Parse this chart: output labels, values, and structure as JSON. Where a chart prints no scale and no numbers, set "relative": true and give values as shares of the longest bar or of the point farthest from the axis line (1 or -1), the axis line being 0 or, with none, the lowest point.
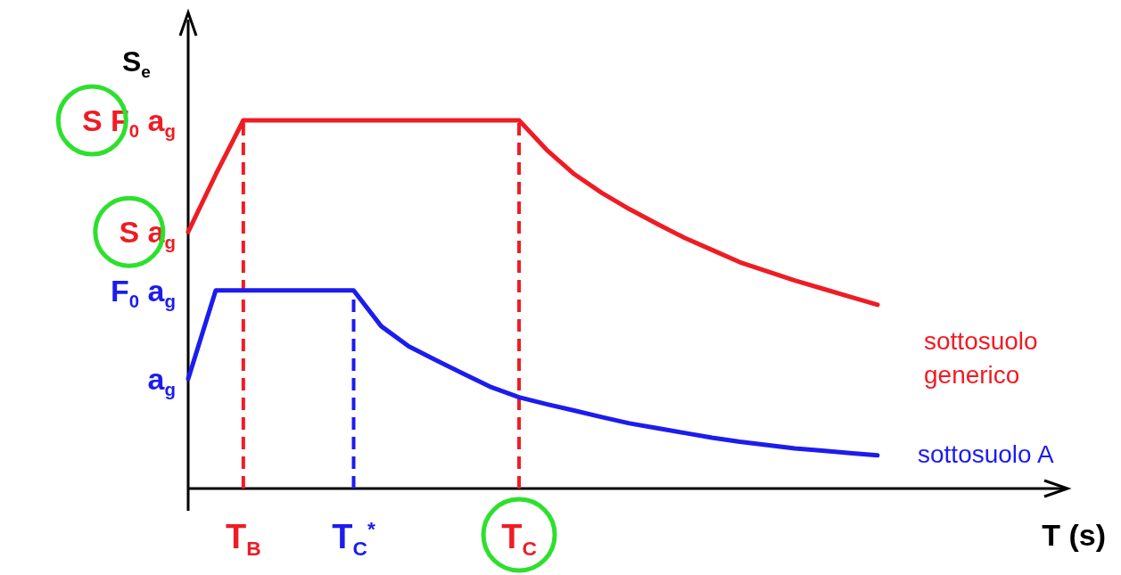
{
  "chart_data": {
    "type": "line",
    "relative": true,
    "xlabel": "T (s)",
    "ylabel": "S$_{e}$",
    "line_style": "solid",
    "categories": [
      null,
      null,
      "T$_{B}$",
      null,
      null,
      null,
      "T$_{C}$$^{*}$",
      null,
      null,
      null,
      null,
      null,
      "T$_{C}$",
      null,
      null,
      null,
      null,
      null,
      null,
      null,
      null,
      null,
      null,
      null,
      null,
      null
    ],
    "series": [
      {
        "name": "sottosuolo generico",
        "color": "#ee1c24",
        "values": [
          0.697,
          0.853,
          1,
          1,
          1,
          1,
          1,
          1,
          1,
          1,
          1,
          1,
          1,
          0.92,
          0.854,
          0.803,
          0.759,
          0.719,
          0.681,
          0.648,
          0.615,
          0.59,
          0.565,
          0.543,
          0.521,
          0.499
        ]
      },
      {
        "name": "sottosuolo A",
        "color": "#1c1cee",
        "values": [
          0.298,
          0.538,
          0.538,
          0.538,
          0.538,
          0.538,
          0.538,
          0.441,
          0.386,
          0.348,
          0.311,
          0.275,
          0.248,
          0.229,
          0.212,
          0.194,
          0.177,
          0.164,
          0.151,
          0.138,
          0.127,
          0.118,
          0.109,
          0.103,
          0.096,
          0.09
        ]
      }
    ],
    "ref_lines": [
      {
        "axis": "x",
        "value": "T$_{B}$",
        "color": "#ee1c24",
        "line_style": "dashed"
      },
      {
        "axis": "x",
        "value": "T$_{C}$$^{*}$",
        "color": "#1c1cee",
        "line_style": "dashed"
      },
      {
        "axis": "x",
        "value": "T$_{C}$",
        "color": "#ee1c24",
        "line_style": "dashed"
      }
    ],
    "annotations": [
      "a$_{g}$",
      "F$_{0}$ a$_{g}$",
      "S a$_{g}$",
      "S F$_{0}$ a$_{g}$"
    ]
  }
}
